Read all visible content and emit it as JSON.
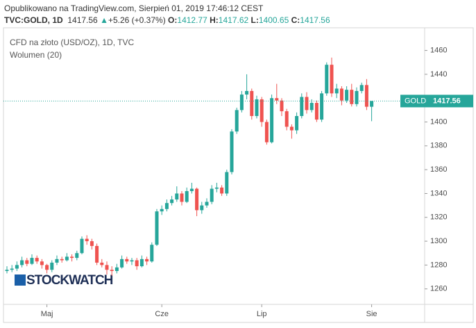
{
  "header": {
    "published": "Opublikowano na TradingView.com, Sierpień 01, 2019 17:46:12 CEST",
    "symbol": "TVC:GOLD, 1D",
    "arrow": "▲",
    "change": "+5.26 (+0.37%)",
    "o_label": "O:",
    "h_label": "H:",
    "l_label": "L:",
    "c_label": "C:"
  },
  "legend": {
    "line1": "CFD na złoto (USD/OZ), 1D, TVC",
    "line2": "Wolumen (20)"
  },
  "watermark": "STOCKWATCH",
  "price_tag": "GOLD",
  "chart_data": {
    "type": "candlestick",
    "up_color": "#26a69a",
    "down_color": "#ef5350",
    "categories": [
      null,
      null,
      null,
      null,
      null,
      null,
      null,
      null,
      "Maj",
      null,
      null,
      null,
      null,
      null,
      null,
      null,
      null,
      null,
      null,
      null,
      null,
      null,
      null,
      null,
      null,
      null,
      null,
      null,
      null,
      null,
      null,
      "Cze",
      null,
      null,
      null,
      null,
      null,
      null,
      null,
      null,
      null,
      null,
      null,
      null,
      null,
      null,
      null,
      null,
      null,
      null,
      null,
      "Lip",
      null,
      null,
      null,
      null,
      null,
      null,
      null,
      null,
      null,
      null,
      null,
      null,
      null,
      null,
      null,
      null,
      null,
      null,
      null,
      null,
      null,
      "Sie"
    ],
    "open": [
      1275,
      1276,
      1277,
      1280,
      1284,
      1281,
      1286,
      1283,
      1280,
      1276,
      1282,
      1285,
      1284,
      1287,
      1286,
      1290,
      1302,
      1300,
      1296,
      1282,
      1280,
      1276,
      1275,
      1278,
      1285,
      1283,
      1284,
      1279,
      1285,
      1283,
      1297,
      1325,
      1327,
      1332,
      1335,
      1340,
      1333,
      1342,
      1344,
      1326,
      1330,
      1333,
      1344,
      1345,
      1340,
      1358,
      1392,
      1410,
      1423,
      1426,
      1405,
      1419,
      1400,
      1383,
      1420,
      1418,
      1409,
      1396,
      1393,
      1405,
      1421,
      1410,
      1416,
      1402,
      1424,
      1448,
      1424,
      1428,
      1418,
      1427,
      1415,
      1426,
      1431,
      1412.77
    ],
    "high": [
      1279,
      1280,
      1283,
      1287,
      1286,
      1289,
      1288,
      1285,
      1281,
      1284,
      1288,
      1287,
      1290,
      1289,
      1292,
      1304,
      1305,
      1302,
      1298,
      1285,
      1283,
      1279,
      1281,
      1288,
      1287,
      1286,
      1286,
      1288,
      1287,
      1299,
      1327,
      1330,
      1335,
      1338,
      1346,
      1342,
      1345,
      1349,
      1345,
      1333,
      1336,
      1347,
      1349,
      1347,
      1360,
      1394,
      1412,
      1426,
      1440,
      1428,
      1422,
      1421,
      1402,
      1423,
      1432,
      1420,
      1411,
      1398,
      1408,
      1424,
      1425,
      1419,
      1418,
      1426,
      1450,
      1454,
      1432,
      1430,
      1430,
      1432,
      1429,
      1433,
      1436,
      1417.62
    ],
    "low": [
      1273,
      1274,
      1275,
      1278,
      1279,
      1280,
      1281,
      1277,
      1273,
      1274,
      1280,
      1282,
      1283,
      1283,
      1284,
      1289,
      1297,
      1293,
      1280,
      1278,
      1272,
      1271,
      1273,
      1277,
      1281,
      1280,
      1276,
      1278,
      1280,
      1282,
      1296,
      1322,
      1325,
      1330,
      1333,
      1330,
      1332,
      1340,
      1321,
      1323,
      1328,
      1331,
      1341,
      1338,
      1338,
      1356,
      1390,
      1408,
      1419,
      1402,
      1403,
      1396,
      1381,
      1382,
      1415,
      1405,
      1393,
      1386,
      1390,
      1403,
      1407,
      1408,
      1400,
      1400,
      1422,
      1421,
      1420,
      1414,
      1416,
      1413,
      1413,
      1424,
      1410,
      1400.65
    ],
    "close": [
      1276,
      1277,
      1280,
      1284,
      1281,
      1286,
      1283,
      1280,
      1276,
      1282,
      1285,
      1284,
      1287,
      1286,
      1290,
      1302,
      1300,
      1296,
      1282,
      1280,
      1276,
      1275,
      1278,
      1285,
      1283,
      1284,
      1279,
      1285,
      1283,
      1297,
      1325,
      1327,
      1332,
      1335,
      1340,
      1333,
      1342,
      1344,
      1326,
      1330,
      1333,
      1344,
      1345,
      1340,
      1358,
      1392,
      1410,
      1423,
      1426,
      1405,
      1419,
      1400,
      1383,
      1420,
      1418,
      1409,
      1396,
      1393,
      1405,
      1421,
      1410,
      1416,
      1402,
      1424,
      1448,
      1424,
      1428,
      1418,
      1427,
      1415,
      1426,
      1431,
      1412.77,
      1417.56
    ],
    "ylim": [
      1247,
      1479
    ],
    "yticks": [
      1260,
      1280,
      1300,
      1320,
      1340,
      1360,
      1380,
      1400,
      1420,
      1440,
      1460
    ]
  }
}
